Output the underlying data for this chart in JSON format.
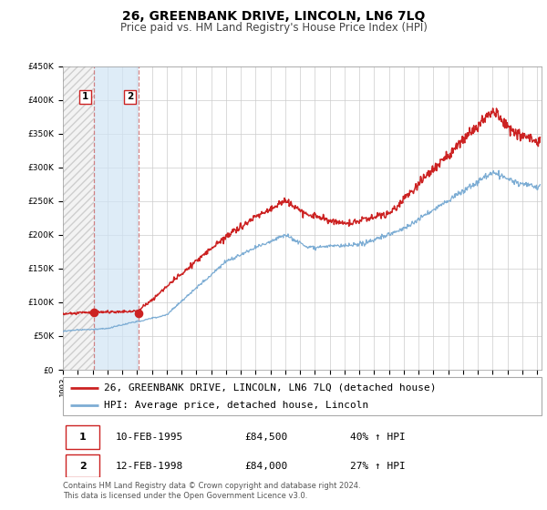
{
  "title": "26, GREENBANK DRIVE, LINCOLN, LN6 7LQ",
  "subtitle": "Price paid vs. HM Land Registry's House Price Index (HPI)",
  "ylim": [
    0,
    450000
  ],
  "xlim_start": 1993.0,
  "xlim_end": 2025.3,
  "background_color": "#ffffff",
  "plot_bg_color": "#ffffff",
  "grid_color": "#cccccc",
  "transaction1_year": 1995.11,
  "transaction1_price": 84500,
  "transaction2_year": 1998.12,
  "transaction2_price": 84000,
  "hatch_end": 1995.11,
  "shade_start": 1995.11,
  "shade_end": 1998.12,
  "hpi_line_color": "#7dadd4",
  "price_line_color": "#cc2222",
  "dot_color": "#cc2222",
  "vline_color": "#cc6666",
  "legend_line1": "26, GREENBANK DRIVE, LINCOLN, LN6 7LQ (detached house)",
  "legend_line2": "HPI: Average price, detached house, Lincoln",
  "table_row1": [
    "1",
    "10-FEB-1995",
    "£84,500",
    "40% ↑ HPI"
  ],
  "table_row2": [
    "2",
    "12-FEB-1998",
    "£84,000",
    "27% ↑ HPI"
  ],
  "footer": "Contains HM Land Registry data © Crown copyright and database right 2024.\nThis data is licensed under the Open Government Licence v3.0.",
  "title_fontsize": 10,
  "subtitle_fontsize": 8.5,
  "tick_fontsize": 6.5,
  "legend_fontsize": 8,
  "table_fontsize": 8,
  "footer_fontsize": 6
}
